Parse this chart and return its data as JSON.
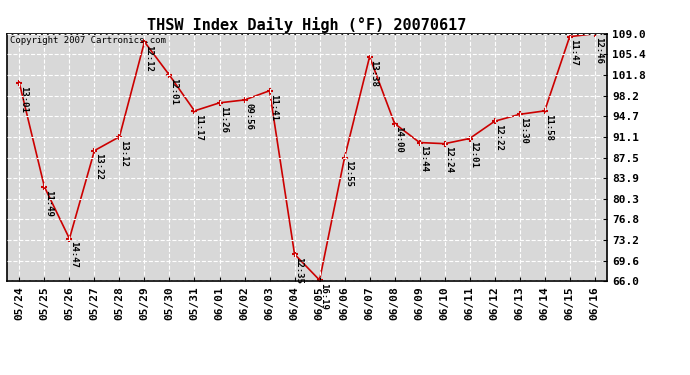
{
  "title": "THSW Index Daily High (°F) 20070617",
  "copyright": "Copyright 2007 Cartronics.com",
  "dates": [
    "05/24",
    "05/25",
    "05/26",
    "05/27",
    "05/28",
    "05/29",
    "05/30",
    "05/31",
    "06/01",
    "06/02",
    "06/03",
    "06/04",
    "06/05",
    "06/06",
    "06/07",
    "06/08",
    "06/09",
    "06/10",
    "06/11",
    "06/12",
    "06/13",
    "06/14",
    "06/15",
    "06/16"
  ],
  "values": [
    100.4,
    82.4,
    73.4,
    88.7,
    91.1,
    107.6,
    101.8,
    95.6,
    97.0,
    97.5,
    99.1,
    70.7,
    66.2,
    87.5,
    105.0,
    93.4,
    90.1,
    89.9,
    90.8,
    93.8,
    95.0,
    95.6,
    108.5,
    109.0
  ],
  "labels": [
    "13:01",
    "11:49",
    "14:47",
    "13:22",
    "13:12",
    "12:12",
    "12:01",
    "11:17",
    "11:26",
    "09:56",
    "11:41",
    "12:35",
    "16:19",
    "12:55",
    "13:38",
    "14:00",
    "13:44",
    "12:24",
    "12:01",
    "12:22",
    "13:30",
    "11:58",
    "11:47",
    "12:46"
  ],
  "yticks": [
    66.0,
    69.6,
    73.2,
    76.8,
    80.3,
    83.9,
    87.5,
    91.1,
    94.7,
    98.2,
    101.8,
    105.4,
    109.0
  ],
  "ymin": 66.0,
  "ymax": 109.0,
  "line_color": "#cc0000",
  "marker_color": "#cc0000",
  "bg_color": "#ffffff",
  "plot_bg_color": "#d8d8d8",
  "grid_color": "#ffffff",
  "title_fontsize": 11,
  "label_fontsize": 6.5,
  "tick_fontsize": 8,
  "copyright_fontsize": 6.5
}
